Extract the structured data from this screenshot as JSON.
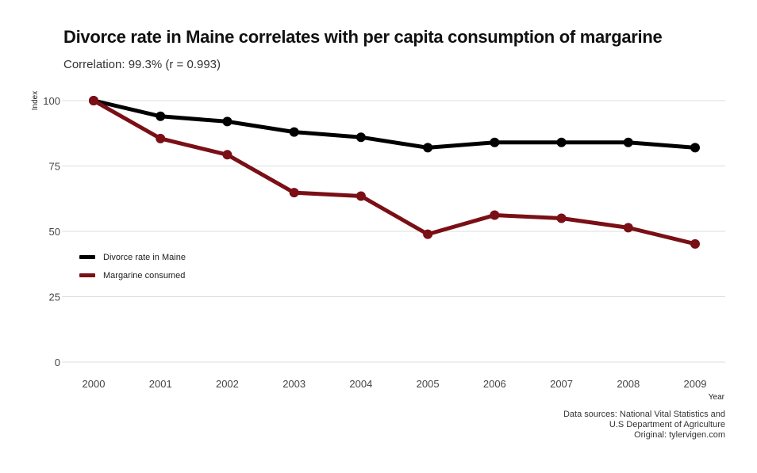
{
  "header": {
    "title": "Divorce rate in Maine correlates with per capita consumption of margarine",
    "subtitle": "Correlation: 99.3% (r = 0.993)"
  },
  "caption": {
    "line1": "Data sources: National Vital Statistics and",
    "line2": "U.S Department of Agriculture",
    "line3": "Original: tylervigen.com"
  },
  "colors": {
    "divorce": "#000000",
    "margarine": "#7a0f16",
    "grid": "#dcdcdc"
  },
  "chart_data": {
    "type": "line",
    "xlabel": "Year",
    "ylabel": "Index",
    "x": [
      "2000",
      "2001",
      "2002",
      "2003",
      "2004",
      "2005",
      "2006",
      "2007",
      "2008",
      "2009"
    ],
    "yticks": [
      "0",
      "25",
      "50",
      "75",
      "100"
    ],
    "ylim": [
      0,
      100
    ],
    "grid": true,
    "legend_position": "left-middle",
    "series": [
      {
        "name": "Divorce rate in Maine",
        "values": [
          100,
          94,
          92,
          88,
          86,
          82,
          84,
          84,
          84,
          82
        ]
      },
      {
        "name": "Margarine consumed",
        "values": [
          100,
          85.5,
          79.3,
          64.8,
          63.5,
          48.9,
          56.2,
          55.0,
          51.4,
          45.2
        ]
      }
    ]
  }
}
